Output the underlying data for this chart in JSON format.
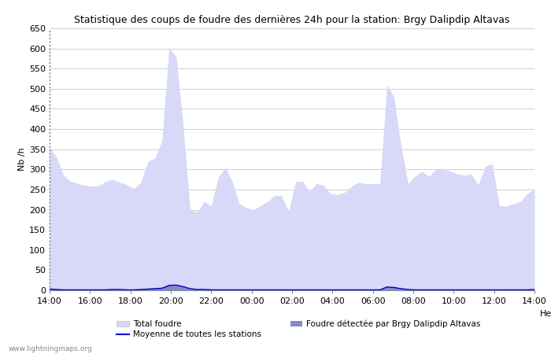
{
  "title": "Statistique des coups de foudre des dernières 24h pour la station: Brgy Dalipdip Altavas",
  "ylabel": "Nb /h",
  "ylim": [
    0,
    650
  ],
  "yticks": [
    0,
    50,
    100,
    150,
    200,
    250,
    300,
    350,
    400,
    450,
    500,
    550,
    600,
    650
  ],
  "x_labels": [
    "14:00",
    "16:00",
    "18:00",
    "20:00",
    "22:00",
    "00:00",
    "02:00",
    "04:00",
    "06:00",
    "08:00",
    "10:00",
    "12:00",
    "14:00"
  ],
  "watermark": "www.lightningmaps.org",
  "bg_color": "#ffffff",
  "plot_bg_color": "#ffffff",
  "grid_color": "#bbbbcc",
  "total_foudre_color": "#d8d8f8",
  "local_foudre_color": "#8888cc",
  "moyenne_color": "#0000cc",
  "legend_total": "Total foudre",
  "legend_local": "Foudre détectée par Brgy Dalipdip Altavas",
  "legend_moyenne": "Moyenne de toutes les stations",
  "total_foudre_values": [
    355,
    330,
    285,
    270,
    265,
    260,
    258,
    260,
    270,
    275,
    268,
    262,
    252,
    268,
    320,
    328,
    372,
    603,
    580,
    410,
    200,
    195,
    220,
    210,
    280,
    305,
    270,
    215,
    205,
    200,
    210,
    220,
    235,
    235,
    195,
    270,
    270,
    245,
    265,
    260,
    240,
    237,
    243,
    258,
    268,
    264,
    265,
    265,
    510,
    480,
    360,
    265,
    283,
    295,
    283,
    300,
    300,
    296,
    288,
    286,
    288,
    262,
    308,
    314,
    210,
    208,
    215,
    220,
    240,
    253
  ],
  "local_foudre_values": [
    5,
    3,
    2,
    1,
    1,
    1,
    1,
    2,
    2,
    3,
    2,
    2,
    2,
    4,
    5,
    6,
    8,
    15,
    14,
    10,
    5,
    3,
    2,
    2,
    2,
    2,
    2,
    2,
    2,
    1,
    1,
    1,
    1,
    1,
    1,
    1,
    2,
    2,
    3,
    2,
    2,
    2,
    2,
    2,
    2,
    2,
    2,
    2,
    10,
    8,
    5,
    3,
    2,
    2,
    2,
    2,
    2,
    2,
    2,
    2,
    2,
    2,
    2,
    2,
    2,
    2,
    2,
    2,
    2,
    3
  ],
  "moyenne_values": [
    3,
    2,
    1,
    1,
    1,
    1,
    1,
    1,
    1,
    2,
    2,
    1,
    1,
    2,
    3,
    4,
    5,
    12,
    13,
    9,
    4,
    2,
    2,
    1,
    1,
    1,
    1,
    1,
    1,
    1,
    1,
    1,
    1,
    1,
    1,
    1,
    1,
    1,
    1,
    1,
    1,
    1,
    1,
    1,
    1,
    1,
    1,
    1,
    8,
    7,
    4,
    2,
    1,
    1,
    1,
    1,
    1,
    1,
    1,
    1,
    1,
    1,
    1,
    1,
    1,
    1,
    1,
    1,
    1,
    2
  ],
  "n_points": 70
}
